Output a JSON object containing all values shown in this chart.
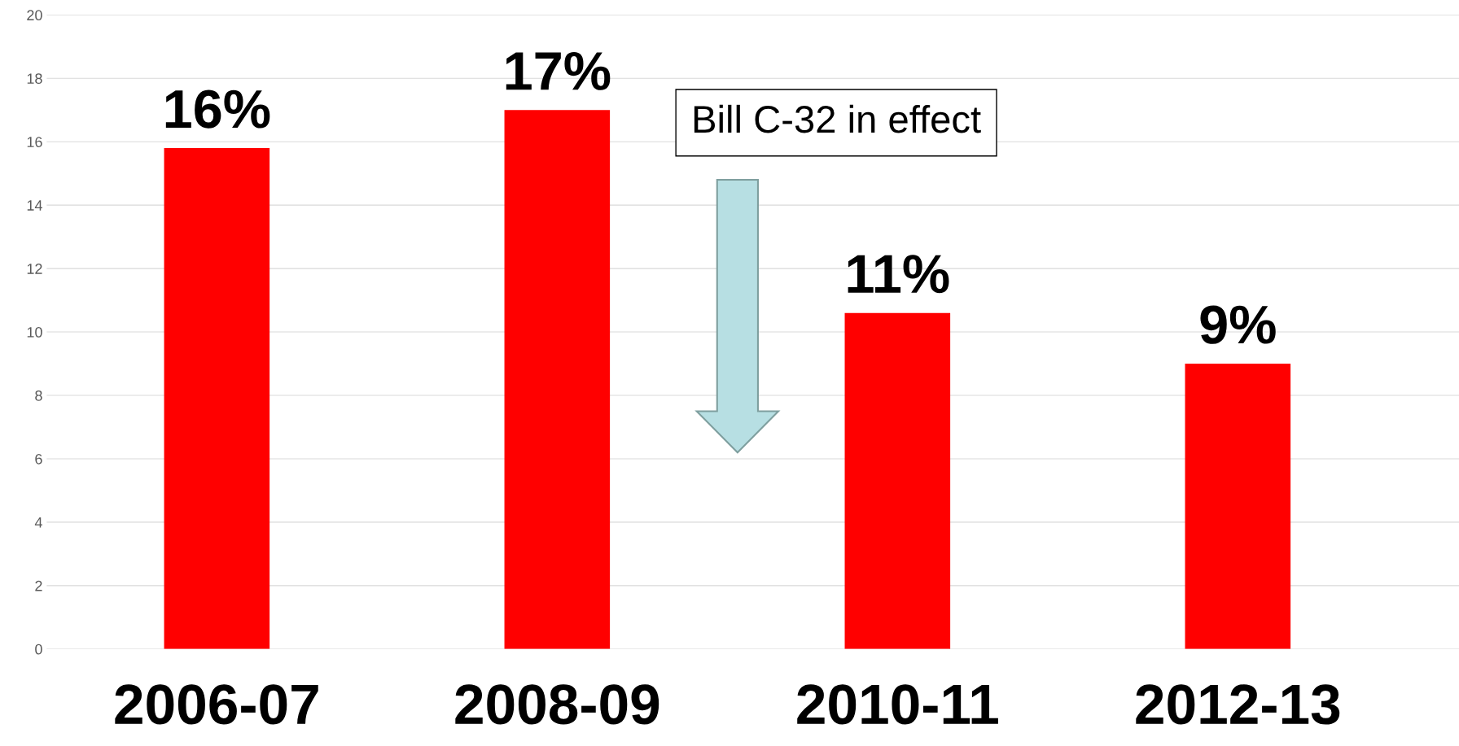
{
  "chart_data": {
    "type": "bar",
    "categories": [
      "2006-07",
      "2008-09",
      "2010-11",
      "2012-13"
    ],
    "values": [
      15.8,
      17.0,
      10.6,
      9.0
    ],
    "value_labels": [
      "16%",
      "17%",
      "11%",
      "9%"
    ],
    "color": "#ff0000",
    "ylim": [
      0,
      20
    ],
    "yticks": [
      0,
      2,
      4,
      6,
      8,
      10,
      12,
      14,
      16,
      18,
      20
    ],
    "grid": "y",
    "annotations": [
      "Bill C-32 in effect"
    ]
  }
}
